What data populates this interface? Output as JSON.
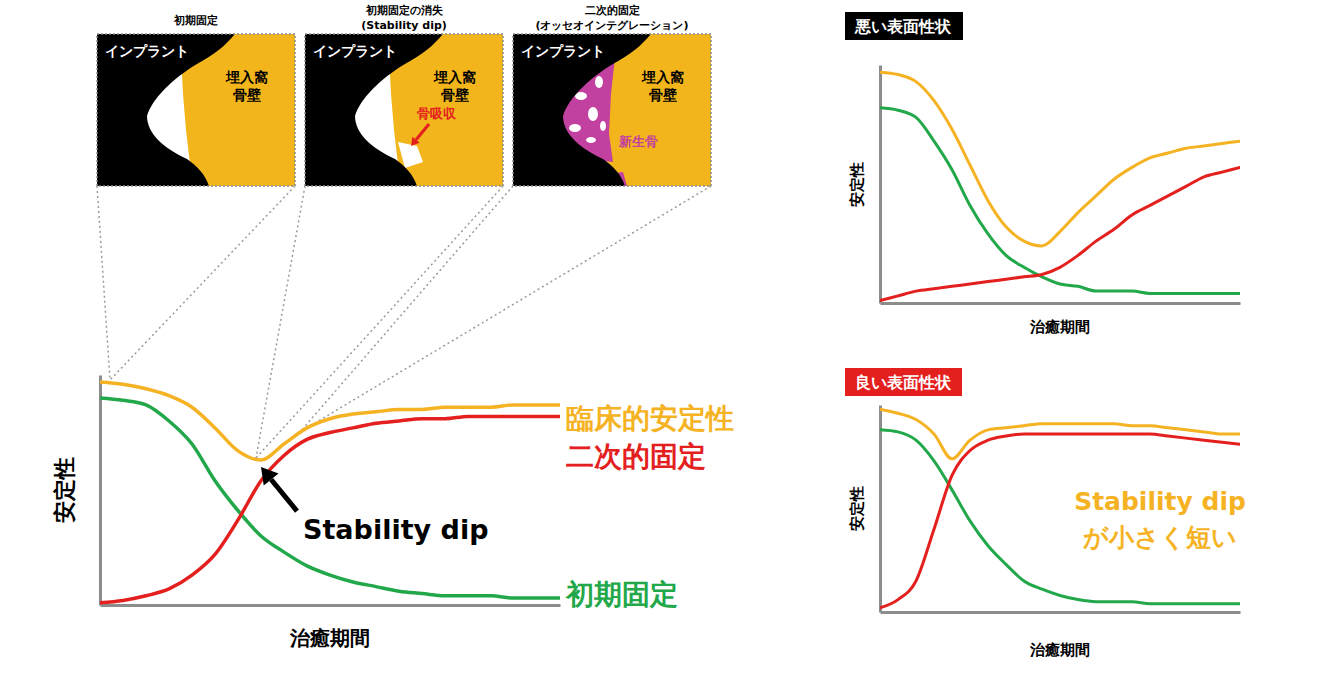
{
  "illustrations": {
    "panels": [
      {
        "title": "初期固定",
        "implant_label": "インプラント",
        "bone_label": [
          "埋入窩",
          "骨壁"
        ]
      },
      {
        "title": "初期固定の消失",
        "subtitle": "(Stability dip)",
        "implant_label": "インプラント",
        "bone_label": [
          "埋入窩",
          "骨壁"
        ],
        "annotation": "骨吸収"
      },
      {
        "title": "二次的固定",
        "subtitle": "(オッセオインテグレーション)",
        "implant_label": "インプラント",
        "bone_label": [
          "埋入窩",
          "骨壁"
        ],
        "annotation": "新生骨"
      }
    ]
  },
  "chart_data": [
    {
      "type": "line",
      "x_label": "治癒期間",
      "y_label": "安定性",
      "tick_labels": false,
      "xlim": [
        0,
        10
      ],
      "ylim": [
        0,
        100
      ],
      "x": [
        0,
        0.5,
        1,
        1.5,
        2,
        2.5,
        3,
        3.5,
        4,
        4.5,
        5,
        5.5,
        6,
        6.5,
        7,
        7.5,
        8,
        8.5,
        9,
        9.5,
        10
      ],
      "series": [
        {
          "name": "初期固定",
          "color": "#22a84a",
          "values": [
            90,
            89,
            87,
            80,
            70,
            54,
            41,
            30,
            23,
            17,
            13,
            10,
            8,
            6,
            5,
            4,
            4,
            4,
            3,
            3,
            3
          ]
        },
        {
          "name": "二次的固定",
          "color": "#e4201f",
          "values": [
            1,
            2,
            4,
            7,
            13,
            22,
            37,
            54,
            65,
            72,
            75,
            77,
            79,
            80,
            81,
            81,
            82,
            82,
            82,
            82,
            82
          ]
        },
        {
          "name": "臨床的安定性",
          "color": "#f5b324",
          "values": [
            97,
            96,
            94,
            91,
            86,
            77,
            67,
            63,
            70,
            77,
            81,
            83,
            84,
            85,
            85,
            86,
            86,
            86,
            87,
            87,
            87
          ]
        }
      ],
      "annotations": [
        "Stability dip"
      ]
    },
    {
      "type": "line",
      "title": "悪い表面性状",
      "x_label": "治癒期間",
      "y_label": "安定性",
      "tick_labels": false,
      "xlim": [
        0,
        10
      ],
      "ylim": [
        0,
        100
      ],
      "x": [
        0,
        0.5,
        1,
        1.5,
        2,
        2.5,
        3,
        3.5,
        4,
        4.5,
        5,
        5.5,
        6,
        6.5,
        7,
        7.5,
        8,
        8.5,
        9,
        9.5,
        10
      ],
      "series": [
        {
          "color": "#22a84a",
          "values": [
            82,
            81,
            78,
            68,
            56,
            41,
            29,
            20,
            15,
            11,
            8,
            7,
            5,
            5,
            5,
            4,
            4,
            4,
            4,
            4,
            4
          ]
        },
        {
          "color": "#e4201f",
          "values": [
            1,
            3,
            5,
            6,
            7,
            8,
            9,
            10,
            11,
            12,
            15,
            20,
            26,
            31,
            37,
            41,
            45,
            49,
            53,
            55,
            57
          ]
        },
        {
          "color": "#f5b324",
          "values": [
            97,
            96,
            93,
            85,
            73,
            58,
            43,
            32,
            26,
            24,
            30,
            38,
            45,
            52,
            57,
            61,
            63,
            65,
            66,
            67,
            68
          ]
        }
      ]
    },
    {
      "type": "line",
      "title": "良い表面性状",
      "x_label": "治癒期間",
      "y_label": "安定性",
      "tick_labels": false,
      "xlim": [
        0,
        10
      ],
      "ylim": [
        0,
        100
      ],
      "x": [
        0,
        0.5,
        1,
        1.5,
        2,
        2.5,
        3,
        3.5,
        4,
        4.5,
        5,
        5.5,
        6,
        6.5,
        7,
        7.5,
        8,
        8.5,
        9,
        9.5,
        10
      ],
      "series": [
        {
          "color": "#22a84a",
          "values": [
            88,
            87,
            83,
            73,
            59,
            44,
            32,
            23,
            15,
            11,
            8,
            6,
            5,
            5,
            5,
            4,
            4,
            4,
            4,
            4,
            4
          ]
        },
        {
          "color": "#e4201f",
          "values": [
            2,
            6,
            15,
            40,
            66,
            78,
            83,
            85,
            86,
            86,
            86,
            86,
            86,
            86,
            86,
            86,
            85,
            84,
            83,
            82,
            81
          ]
        },
        {
          "color": "#f5b324",
          "values": [
            98,
            96,
            93,
            86,
            74,
            83,
            88,
            89,
            90,
            91,
            91,
            91,
            91,
            91,
            90,
            90,
            89,
            88,
            87,
            86,
            86
          ]
        }
      ],
      "annotations": [
        "Stability dip",
        "が小さく短い"
      ]
    }
  ]
}
